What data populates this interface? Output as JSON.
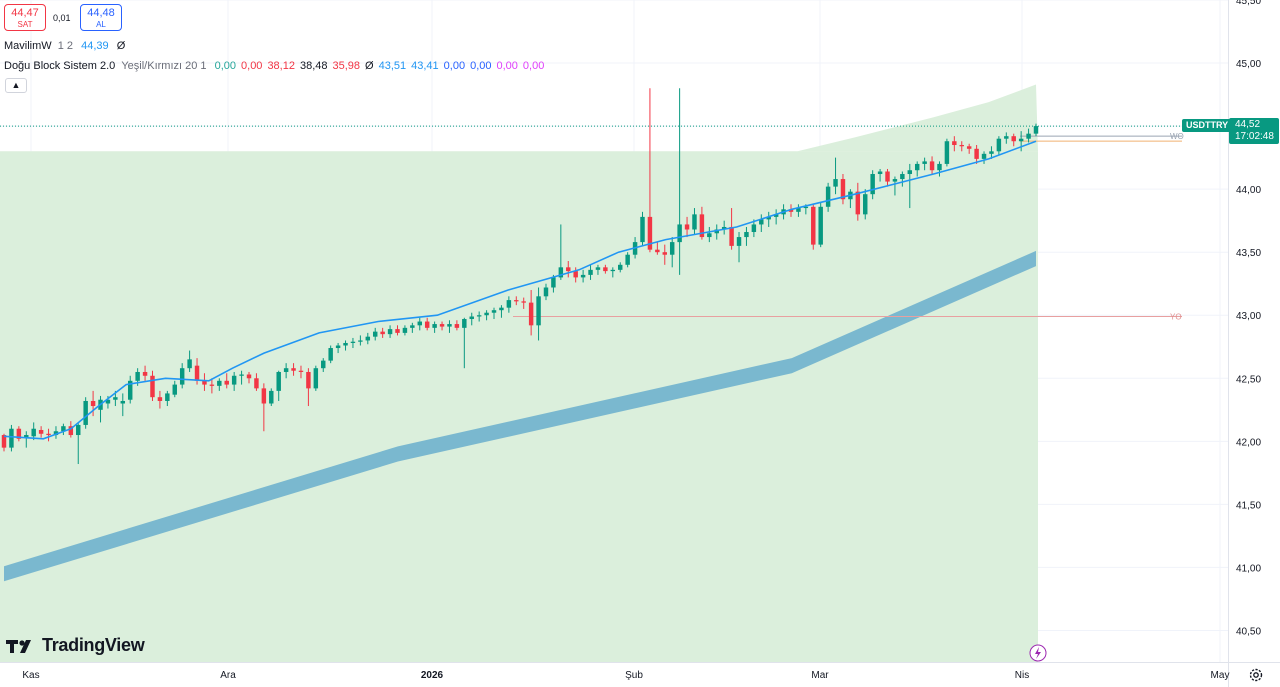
{
  "header": {
    "sell": {
      "price": "44,47",
      "label": "SAT"
    },
    "buy": {
      "price": "44,48",
      "label": "AL"
    },
    "spread": "0,01"
  },
  "legend": {
    "line1": {
      "name": "MavilimW",
      "args": "1 2",
      "value": "44,39",
      "symbol": "Ø"
    },
    "line2": {
      "name": "Doğu Block Sistem 2.0",
      "args": "Yeşil/Kırmızı 20 1",
      "values": [
        {
          "text": "0,00",
          "color": "#26a69a"
        },
        {
          "text": "0,00",
          "color": "#f23645"
        },
        {
          "text": "38,12",
          "color": "#f23645"
        },
        {
          "text": "38,48",
          "color": "#131722"
        },
        {
          "text": "35,98",
          "color": "#f23645"
        },
        {
          "text": "Ø",
          "color": "#131722"
        },
        {
          "text": "43,51",
          "color": "#2196f3"
        },
        {
          "text": "43,41",
          "color": "#2196f3"
        },
        {
          "text": "0,00",
          "color": "#2962ff"
        },
        {
          "text": "0,00",
          "color": "#2962ff"
        },
        {
          "text": "0,00",
          "color": "#e040fb"
        },
        {
          "text": "0,00",
          "color": "#e040fb"
        }
      ]
    }
  },
  "brand": {
    "name": "TradingView"
  },
  "price_label": {
    "symbol": "USDTTRY",
    "price": "44,52",
    "countdown": "17:02:48"
  },
  "colors": {
    "up": "#089981",
    "down": "#f23645",
    "area": "#dbefdc",
    "mavilim": "#2196f3",
    "band": "#7ab8cf",
    "level": "#e8a0a0"
  },
  "chart_data": {
    "type": "candlestick",
    "symbol": "USDTTRY",
    "y_axis": {
      "min": 40.25,
      "max": 45.5,
      "ticks": [
        "40,50",
        "41,00",
        "41,50",
        "42,00",
        "42,50",
        "43,00",
        "43,50",
        "44,00",
        "44,50",
        "45,00",
        "45,50"
      ]
    },
    "x_axis": {
      "labels": [
        "Kas",
        "Ara",
        "2026",
        "Şub",
        "Mar",
        "Nis",
        "May"
      ],
      "bars_total": 210
    },
    "candles": [
      [
        42.05,
        42.06,
        41.92,
        41.95
      ],
      [
        41.95,
        42.13,
        41.92,
        42.1
      ],
      [
        42.1,
        42.12,
        42.0,
        42.02
      ],
      [
        42.03,
        42.08,
        41.95,
        42.05
      ],
      [
        42.04,
        42.15,
        42.01,
        42.1
      ],
      [
        42.09,
        42.12,
        42.03,
        42.06
      ],
      [
        42.06,
        42.1,
        42.0,
        42.05
      ],
      [
        42.05,
        42.12,
        42.02,
        42.08
      ],
      [
        42.08,
        42.14,
        42.05,
        42.12
      ],
      [
        42.12,
        42.16,
        42.03,
        42.05
      ],
      [
        42.05,
        42.15,
        41.82,
        42.13
      ],
      [
        42.13,
        42.35,
        42.1,
        42.32
      ],
      [
        42.32,
        42.4,
        42.2,
        42.28
      ],
      [
        42.25,
        42.36,
        42.15,
        42.33
      ],
      [
        42.3,
        42.36,
        42.26,
        42.33
      ],
      [
        42.33,
        42.4,
        42.28,
        42.35
      ],
      [
        42.3,
        42.38,
        42.2,
        42.32
      ],
      [
        42.33,
        42.52,
        42.3,
        42.48
      ],
      [
        42.48,
        42.58,
        42.44,
        42.55
      ],
      [
        42.55,
        42.6,
        42.48,
        42.52
      ],
      [
        42.52,
        42.56,
        42.32,
        42.35
      ],
      [
        42.35,
        42.4,
        42.26,
        42.32
      ],
      [
        42.32,
        42.4,
        42.28,
        42.38
      ],
      [
        42.37,
        42.48,
        42.35,
        42.45
      ],
      [
        42.45,
        42.62,
        42.42,
        42.58
      ],
      [
        42.58,
        42.72,
        42.55,
        42.65
      ],
      [
        42.6,
        42.66,
        42.45,
        42.48
      ],
      [
        42.48,
        42.54,
        42.4,
        42.45
      ],
      [
        42.45,
        42.5,
        42.38,
        42.44
      ],
      [
        42.44,
        42.5,
        42.4,
        42.48
      ],
      [
        42.48,
        42.54,
        42.42,
        42.45
      ],
      [
        42.45,
        42.55,
        42.4,
        42.52
      ],
      [
        42.52,
        42.56,
        42.45,
        42.53
      ],
      [
        42.53,
        42.55,
        42.46,
        42.5
      ],
      [
        42.5,
        42.54,
        42.4,
        42.42
      ],
      [
        42.42,
        42.46,
        42.08,
        42.3
      ],
      [
        42.3,
        42.42,
        42.28,
        42.4
      ],
      [
        42.4,
        42.56,
        42.32,
        42.55
      ],
      [
        42.55,
        42.62,
        42.5,
        42.58
      ],
      [
        42.58,
        42.62,
        42.52,
        42.56
      ],
      [
        42.56,
        42.6,
        42.5,
        42.55
      ],
      [
        42.55,
        42.58,
        42.28,
        42.42
      ],
      [
        42.42,
        42.6,
        42.4,
        42.58
      ],
      [
        42.58,
        42.66,
        42.55,
        42.64
      ],
      [
        42.64,
        42.76,
        42.62,
        42.74
      ],
      [
        42.74,
        42.78,
        42.7,
        42.76
      ],
      [
        42.76,
        42.8,
        42.72,
        42.78
      ],
      [
        42.78,
        42.82,
        42.74,
        42.79
      ],
      [
        42.79,
        42.84,
        42.76,
        42.8
      ],
      [
        42.8,
        42.86,
        42.77,
        42.83
      ],
      [
        42.83,
        42.9,
        42.8,
        42.87
      ],
      [
        42.87,
        42.9,
        42.82,
        42.85
      ],
      [
        42.85,
        42.92,
        42.82,
        42.89
      ],
      [
        42.89,
        42.92,
        42.84,
        42.86
      ],
      [
        42.86,
        42.92,
        42.84,
        42.9
      ],
      [
        42.9,
        42.94,
        42.86,
        42.92
      ],
      [
        42.92,
        42.98,
        42.88,
        42.95
      ],
      [
        42.95,
        42.98,
        42.88,
        42.9
      ],
      [
        42.9,
        42.95,
        42.86,
        42.93
      ],
      [
        42.93,
        42.95,
        42.88,
        42.91
      ],
      [
        42.91,
        42.96,
        42.86,
        42.93
      ],
      [
        42.93,
        42.96,
        42.88,
        42.9
      ],
      [
        42.9,
        42.98,
        42.58,
        42.97
      ],
      [
        42.97,
        43.02,
        42.92,
        42.99
      ],
      [
        42.99,
        43.03,
        42.95,
        43.0
      ],
      [
        43.0,
        43.04,
        42.96,
        43.02
      ],
      [
        43.02,
        43.06,
        42.97,
        43.04
      ],
      [
        43.04,
        43.08,
        42.98,
        43.06
      ],
      [
        43.06,
        43.15,
        43.02,
        43.12
      ],
      [
        43.12,
        43.15,
        43.08,
        43.11
      ],
      [
        43.11,
        43.14,
        43.05,
        43.1
      ],
      [
        43.1,
        43.2,
        42.84,
        42.92
      ],
      [
        42.92,
        43.22,
        42.8,
        43.15
      ],
      [
        43.15,
        43.25,
        43.12,
        43.22
      ],
      [
        43.22,
        43.32,
        43.18,
        43.3
      ],
      [
        43.3,
        43.72,
        43.28,
        43.38
      ],
      [
        43.38,
        43.43,
        43.3,
        43.35
      ],
      [
        43.35,
        43.38,
        43.26,
        43.3
      ],
      [
        43.3,
        43.36,
        43.26,
        43.32
      ],
      [
        43.32,
        43.4,
        43.28,
        43.36
      ],
      [
        43.36,
        43.4,
        43.32,
        43.38
      ],
      [
        43.38,
        43.4,
        43.33,
        43.35
      ],
      [
        43.35,
        43.38,
        43.3,
        43.36
      ],
      [
        43.36,
        43.42,
        43.34,
        43.4
      ],
      [
        43.4,
        43.5,
        43.38,
        43.48
      ],
      [
        43.48,
        43.62,
        43.45,
        43.58
      ],
      [
        43.58,
        43.82,
        43.55,
        43.78
      ],
      [
        43.78,
        44.8,
        43.5,
        43.52
      ],
      [
        43.52,
        43.58,
        43.48,
        43.5
      ],
      [
        43.5,
        43.56,
        43.4,
        43.48
      ],
      [
        43.48,
        43.62,
        43.38,
        43.58
      ],
      [
        43.58,
        44.8,
        43.32,
        43.72
      ],
      [
        43.72,
        43.78,
        43.62,
        43.68
      ],
      [
        43.68,
        43.85,
        43.64,
        43.8
      ],
      [
        43.8,
        43.86,
        43.6,
        43.62
      ],
      [
        43.62,
        43.7,
        43.58,
        43.65
      ],
      [
        43.65,
        43.72,
        43.6,
        43.68
      ],
      [
        43.68,
        43.75,
        43.64,
        43.7
      ],
      [
        43.7,
        43.85,
        43.52,
        43.55
      ],
      [
        43.55,
        43.66,
        43.42,
        43.62
      ],
      [
        43.62,
        43.7,
        43.55,
        43.66
      ],
      [
        43.66,
        43.76,
        43.62,
        43.72
      ],
      [
        43.72,
        43.8,
        43.66,
        43.76
      ],
      [
        43.76,
        43.82,
        43.7,
        43.78
      ],
      [
        43.78,
        43.84,
        43.72,
        43.8
      ],
      [
        43.8,
        43.88,
        43.76,
        43.84
      ],
      [
        43.84,
        43.88,
        43.78,
        43.82
      ],
      [
        43.82,
        43.88,
        43.78,
        43.85
      ],
      [
        43.85,
        43.88,
        43.8,
        43.86
      ],
      [
        43.86,
        43.88,
        43.52,
        43.56
      ],
      [
        43.56,
        43.9,
        43.54,
        43.86
      ],
      [
        43.86,
        44.05,
        43.82,
        44.02
      ],
      [
        44.02,
        44.25,
        43.96,
        44.08
      ],
      [
        44.08,
        44.12,
        43.88,
        43.92
      ],
      [
        43.92,
        44.0,
        43.85,
        43.98
      ],
      [
        43.98,
        44.05,
        43.75,
        43.8
      ],
      [
        43.8,
        44.0,
        43.76,
        43.96
      ],
      [
        43.96,
        44.15,
        43.92,
        44.12
      ],
      [
        44.12,
        44.16,
        44.06,
        44.14
      ],
      [
        44.14,
        44.16,
        44.02,
        44.06
      ],
      [
        44.06,
        44.1,
        43.95,
        44.08
      ],
      [
        44.08,
        44.14,
        44.02,
        44.12
      ],
      [
        44.12,
        44.2,
        43.85,
        44.15
      ],
      [
        44.15,
        44.22,
        44.1,
        44.2
      ],
      [
        44.2,
        44.25,
        44.15,
        44.22
      ],
      [
        44.22,
        44.26,
        44.12,
        44.15
      ],
      [
        44.15,
        44.22,
        44.1,
        44.2
      ],
      [
        44.2,
        44.4,
        44.18,
        44.38
      ],
      [
        44.38,
        44.42,
        44.3,
        44.35
      ],
      [
        44.35,
        44.38,
        44.3,
        44.34
      ],
      [
        44.34,
        44.36,
        44.28,
        44.32
      ],
      [
        44.32,
        44.35,
        44.2,
        44.24
      ],
      [
        44.24,
        44.3,
        44.2,
        44.28
      ],
      [
        44.28,
        44.34,
        44.24,
        44.3
      ],
      [
        44.3,
        44.42,
        44.27,
        44.4
      ],
      [
        44.4,
        44.45,
        44.36,
        44.42
      ],
      [
        44.42,
        44.44,
        44.34,
        44.38
      ],
      [
        44.38,
        44.46,
        44.3,
        44.4
      ],
      [
        44.4,
        44.48,
        44.37,
        44.44
      ],
      [
        44.44,
        44.52,
        44.42,
        44.5
      ]
    ],
    "mavilim": [
      [
        0,
        42.04
      ],
      [
        10,
        42.02
      ],
      [
        17,
        42.1
      ],
      [
        24,
        42.28
      ],
      [
        31,
        42.45
      ],
      [
        41,
        42.5
      ],
      [
        52,
        42.48
      ],
      [
        58,
        42.58
      ],
      [
        66,
        42.7
      ],
      [
        80,
        42.86
      ],
      [
        95,
        42.95
      ],
      [
        110,
        43.0
      ],
      [
        128,
        43.2
      ],
      [
        146,
        43.36
      ],
      [
        156,
        43.5
      ],
      [
        168,
        43.6
      ],
      [
        186,
        43.7
      ],
      [
        200,
        43.84
      ],
      [
        216,
        43.96
      ],
      [
        236,
        44.12
      ],
      [
        250,
        44.24
      ],
      [
        262,
        44.38
      ]
    ],
    "band": [
      [
        0,
        40.95
      ],
      [
        100,
        41.9
      ],
      [
        200,
        42.6
      ],
      [
        262,
        43.45
      ]
    ],
    "band_thickness": 0.12,
    "levels": [
      {
        "label": "YO",
        "value": 42.99
      },
      {
        "label": "WO",
        "value": 44.42
      }
    ]
  }
}
